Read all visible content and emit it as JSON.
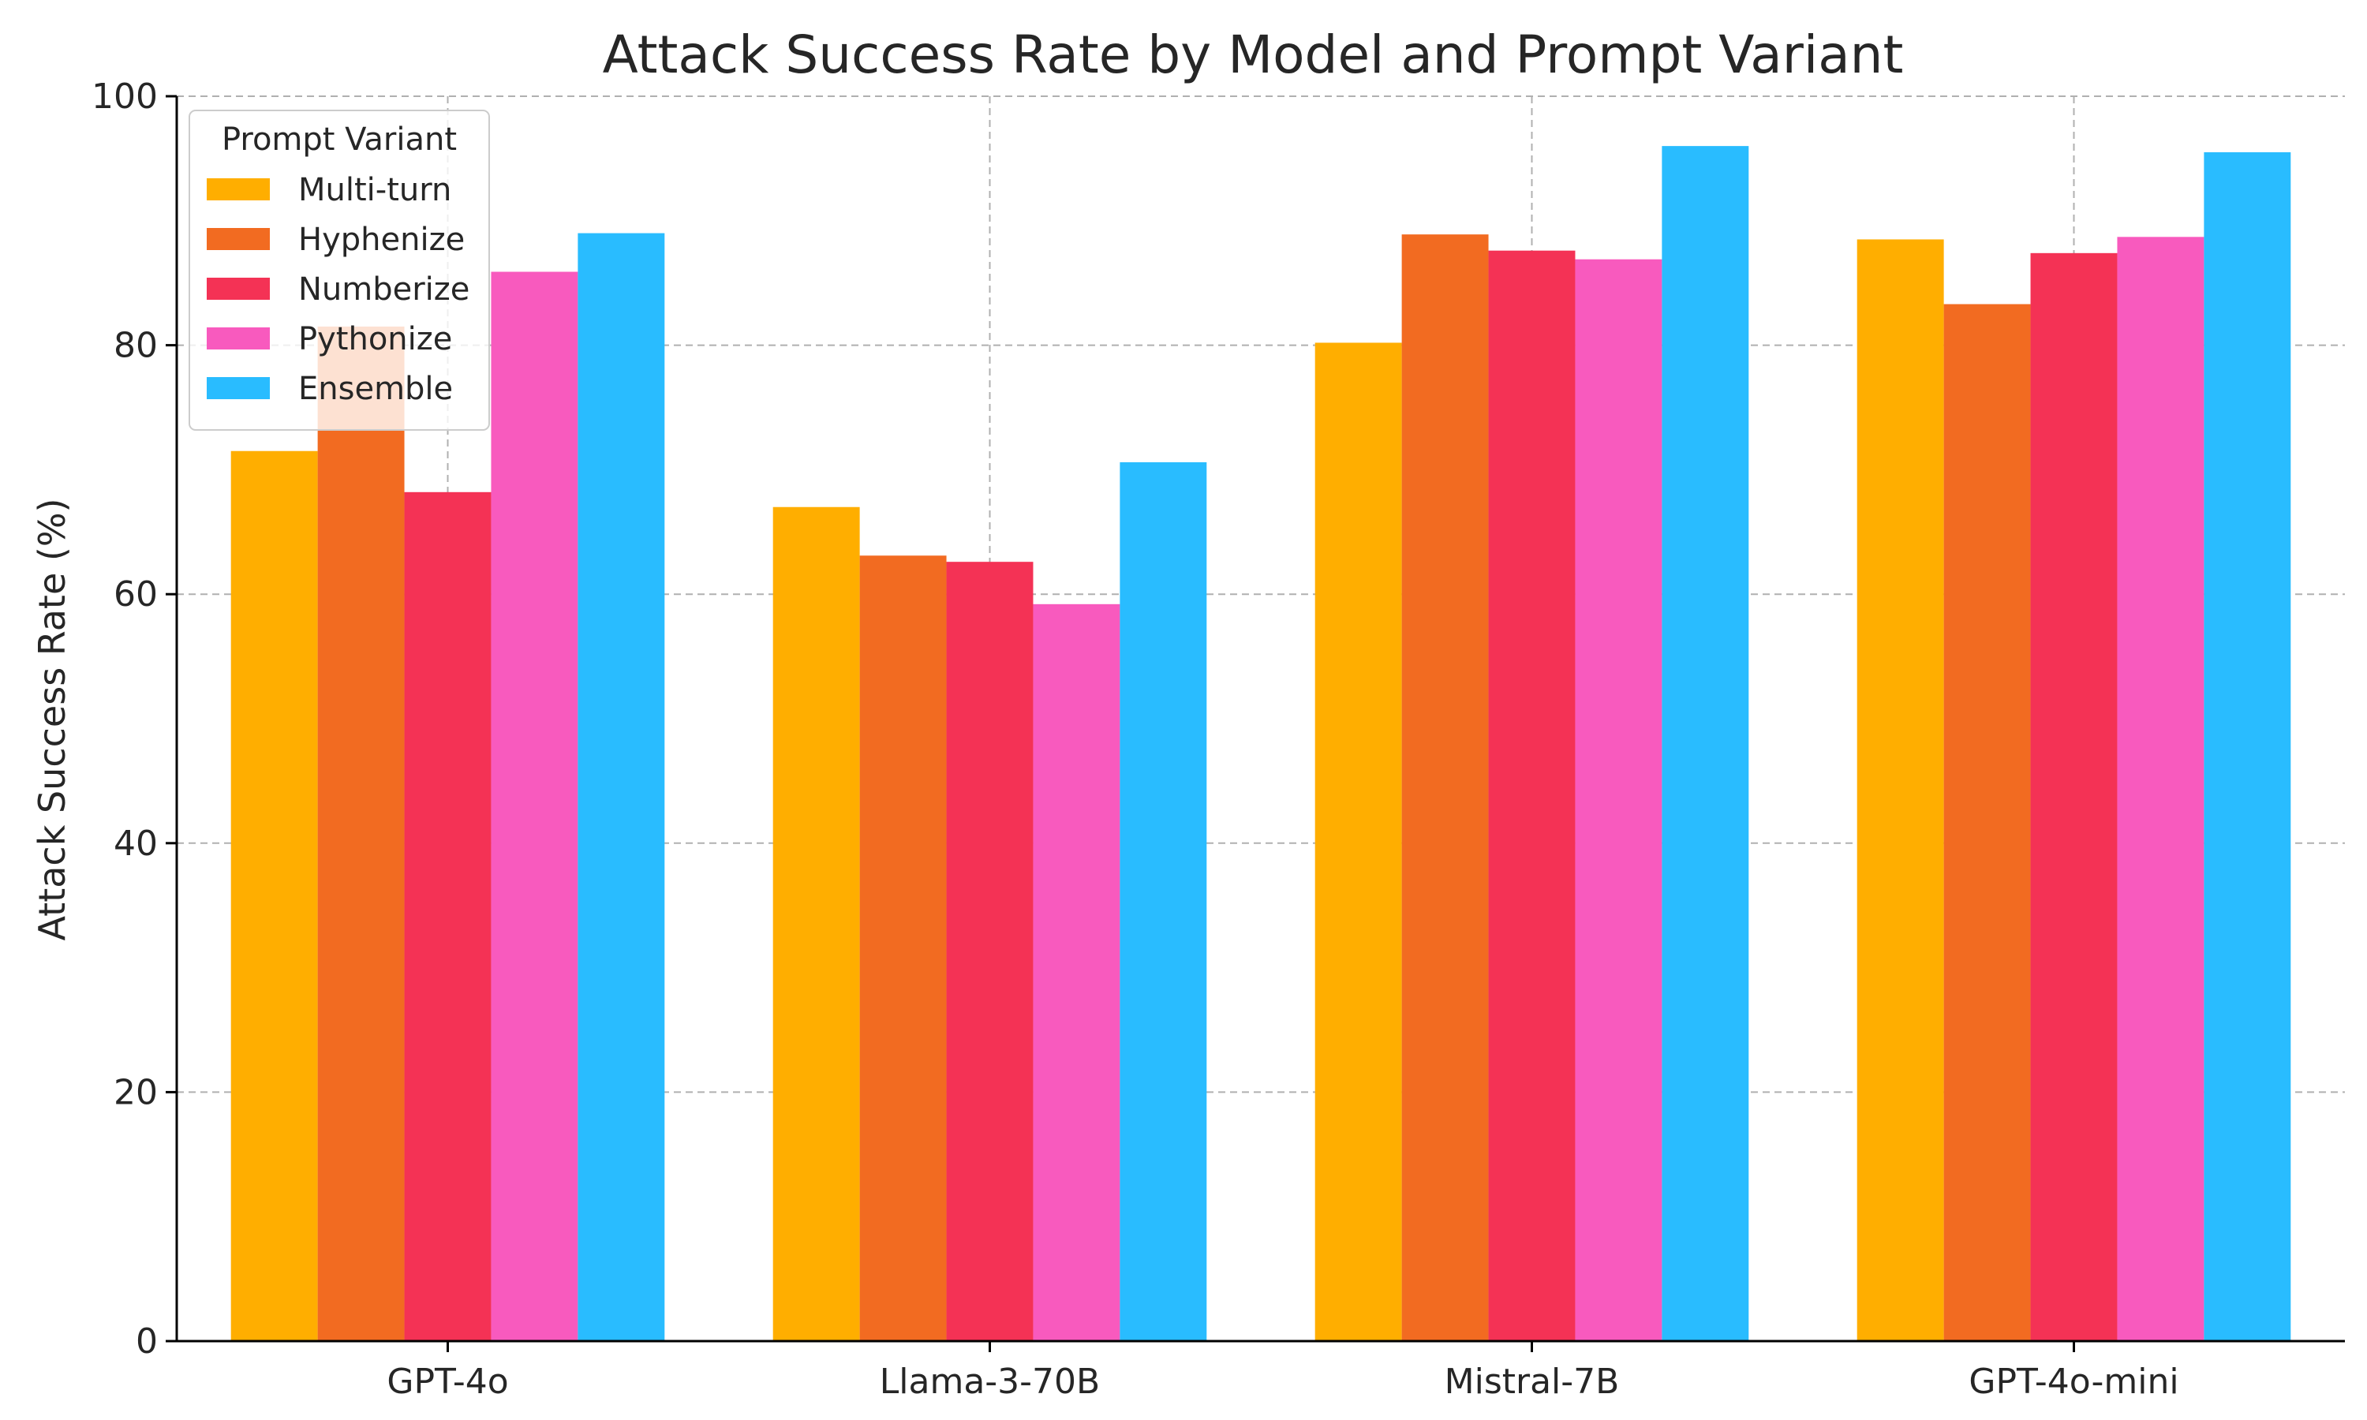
{
  "chart_data": {
    "type": "bar",
    "title": "Attack Success Rate by Model and Prompt Variant",
    "xlabel": "",
    "ylabel": "Attack Success Rate (%)",
    "ylim": [
      0,
      100
    ],
    "yticks": [
      0,
      20,
      40,
      60,
      80,
      100
    ],
    "grid": true,
    "legend_title": "Prompt Variant",
    "legend_position": "top-left",
    "categories": [
      "GPT-4o",
      "Llama-3-70B",
      "Mistral-7B",
      "GPT-4o-mini"
    ],
    "series": [
      {
        "name": "Multi-turn",
        "color": "#FFAE00",
        "values": [
          71.5,
          67.0,
          80.2,
          88.5
        ]
      },
      {
        "name": "Hyphenize",
        "color": "#F26B21",
        "values": [
          81.5,
          63.1,
          88.9,
          83.3
        ]
      },
      {
        "name": "Numberize",
        "color": "#F43255",
        "values": [
          68.2,
          62.6,
          87.6,
          87.4
        ]
      },
      {
        "name": "Pythonize",
        "color": "#F85ABE",
        "values": [
          85.9,
          59.2,
          86.9,
          88.7
        ]
      },
      {
        "name": "Ensemble",
        "color": "#29BCFF",
        "values": [
          89.0,
          70.6,
          96.0,
          95.5
        ]
      }
    ]
  }
}
